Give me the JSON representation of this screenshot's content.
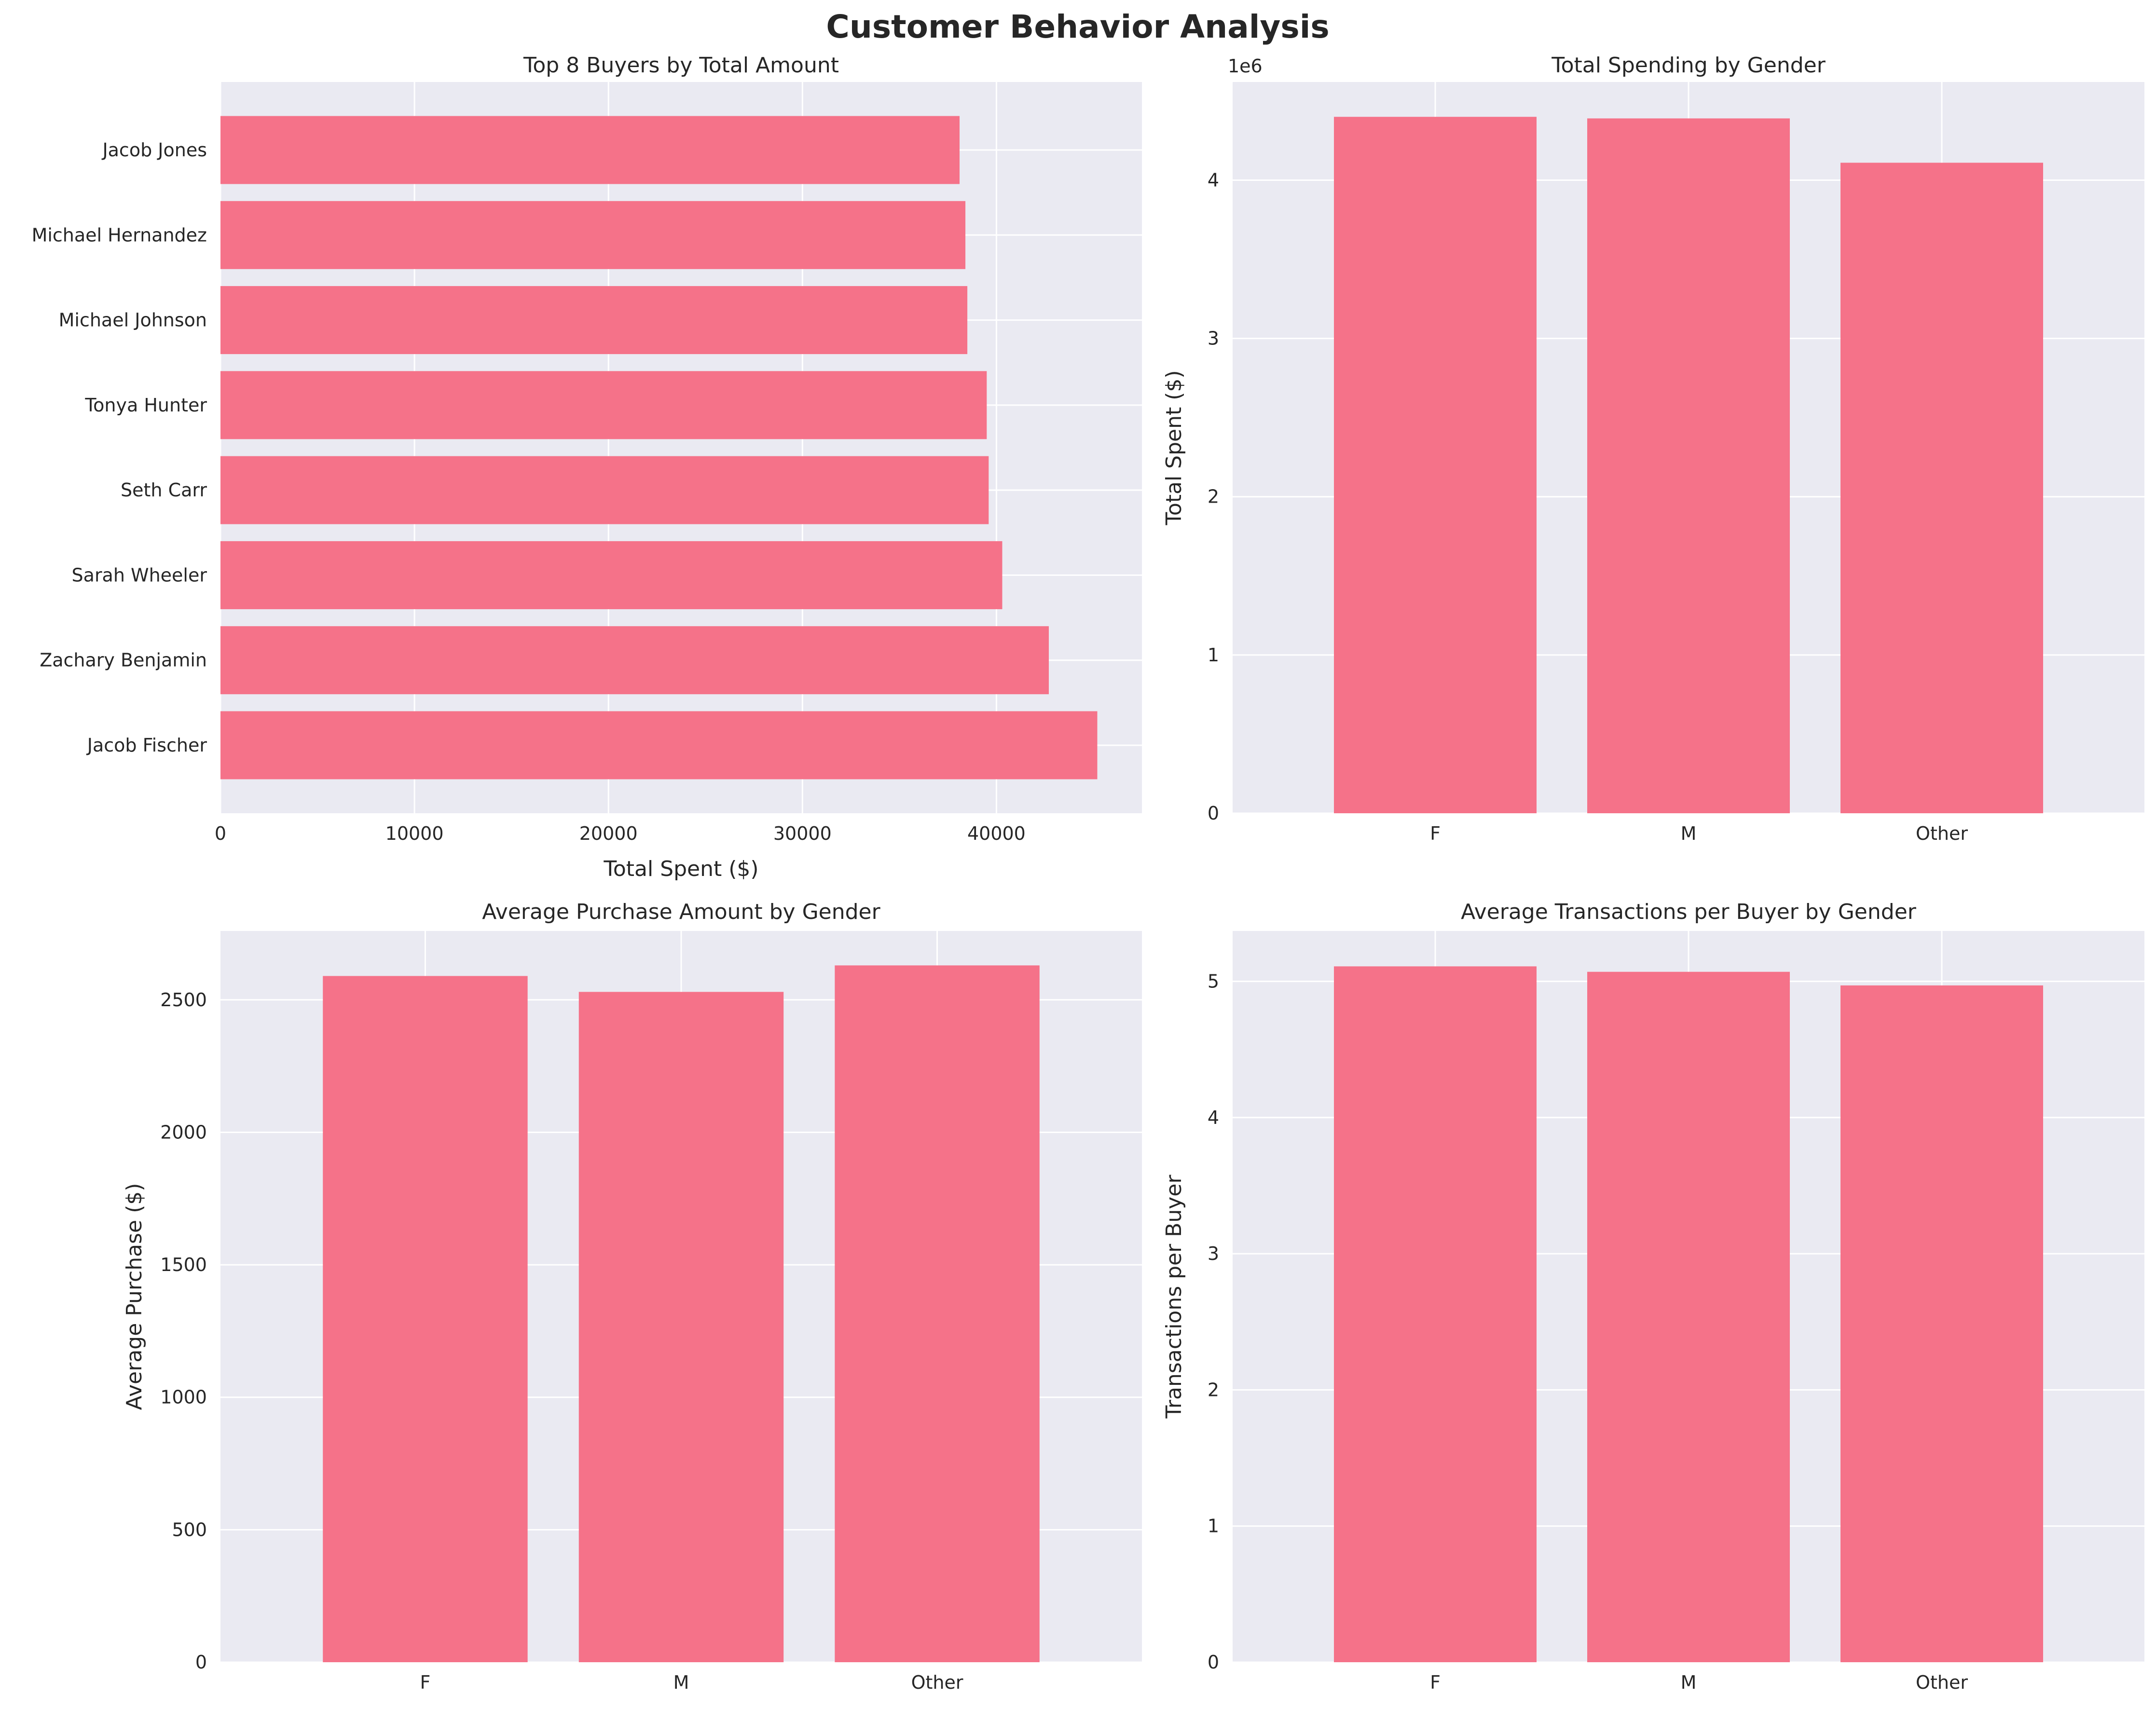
{
  "figure": {
    "title": "Customer Behavior Analysis"
  },
  "colors": {
    "bar": "#f57289",
    "panel_background": "#eaeaf2",
    "grid": "#ffffff",
    "text": "#262626"
  },
  "chart_data": [
    {
      "type": "bar",
      "orientation": "horizontal",
      "title": "Top 8 Buyers by Total Amount",
      "xlabel": "Total Spent ($)",
      "ylabel": "",
      "categories": [
        "Jacob Fischer",
        "Zachary Benjamin",
        "Sarah Wheeler",
        "Seth Carr",
        "Tonya Hunter",
        "Michael Johnson",
        "Michael Hernandez",
        "Jacob Jones"
      ],
      "values": [
        45200,
        42700,
        40300,
        39600,
        39500,
        38500,
        38400,
        38100
      ],
      "xlim": [
        0,
        47500
      ],
      "ticks": [
        0,
        10000,
        20000,
        30000,
        40000
      ],
      "tick_labels": [
        "0",
        "10000",
        "20000",
        "30000",
        "40000"
      ],
      "grid": true
    },
    {
      "type": "bar",
      "title": "Total Spending by Gender",
      "xlabel": "",
      "ylabel": "Total Spent ($)",
      "offset_label": "1e6",
      "categories": [
        "F",
        "M",
        "Other"
      ],
      "values": [
        4400000,
        4390000,
        4110000
      ],
      "ylim": [
        0,
        4620000
      ],
      "ticks": [
        0,
        1000000,
        2000000,
        3000000,
        4000000
      ],
      "tick_labels": [
        "0",
        "1",
        "2",
        "3",
        "4"
      ],
      "grid": true
    },
    {
      "type": "bar",
      "title": "Average Purchase Amount by Gender",
      "xlabel": "",
      "ylabel": "Average Purchase ($)",
      "categories": [
        "F",
        "M",
        "Other"
      ],
      "values": [
        2590,
        2530,
        2630
      ],
      "ylim": [
        0,
        2760
      ],
      "ticks": [
        0,
        500,
        1000,
        1500,
        2000,
        2500
      ],
      "tick_labels": [
        "0",
        "500",
        "1000",
        "1500",
        "2000",
        "2500"
      ],
      "grid": true
    },
    {
      "type": "bar",
      "title": "Average Transactions per Buyer by Gender",
      "xlabel": "",
      "ylabel": "Transactions per Buyer",
      "categories": [
        "F",
        "M",
        "Other"
      ],
      "values": [
        5.11,
        5.07,
        4.97
      ],
      "ylim": [
        0,
        5.37
      ],
      "ticks": [
        0,
        1,
        2,
        3,
        4,
        5
      ],
      "tick_labels": [
        "0",
        "1",
        "2",
        "3",
        "4",
        "5"
      ],
      "grid": true
    }
  ]
}
